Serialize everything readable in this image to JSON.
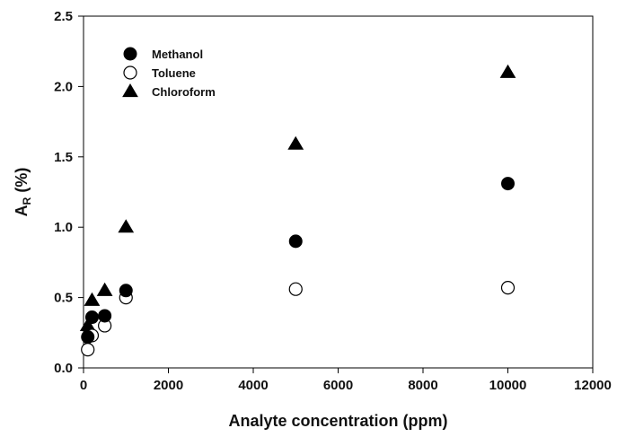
{
  "chart_data": {
    "type": "scatter",
    "title": "",
    "xlabel": "Analyte concentration (ppm)",
    "ylabel": {
      "main": "A",
      "sub": "R",
      "rest": " (%)"
    },
    "xlim": [
      0,
      12000
    ],
    "ylim": [
      0,
      2.5
    ],
    "xticks": [
      0,
      2000,
      4000,
      6000,
      8000,
      10000,
      12000
    ],
    "yticks": [
      "0.0",
      "0.5",
      "1.0",
      "1.5",
      "2.0",
      "2.5"
    ],
    "grid": false,
    "legend_position": "top-left",
    "series": [
      {
        "name": "Methanol",
        "marker": "filled-circle",
        "color": "#000000",
        "x": [
          100,
          200,
          500,
          1000,
          5000,
          10000
        ],
        "y": [
          0.22,
          0.36,
          0.37,
          0.55,
          0.9,
          1.31
        ]
      },
      {
        "name": "Toluene",
        "marker": "open-circle",
        "color": "#000000",
        "x": [
          100,
          200,
          500,
          1000,
          5000,
          10000
        ],
        "y": [
          0.13,
          0.23,
          0.3,
          0.5,
          0.56,
          0.57
        ]
      },
      {
        "name": "Chloroform",
        "marker": "filled-triangle",
        "color": "#000000",
        "x": [
          100,
          200,
          500,
          1000,
          5000,
          10000
        ],
        "y": [
          0.3,
          0.48,
          0.55,
          1.0,
          1.59,
          2.1
        ]
      }
    ]
  }
}
